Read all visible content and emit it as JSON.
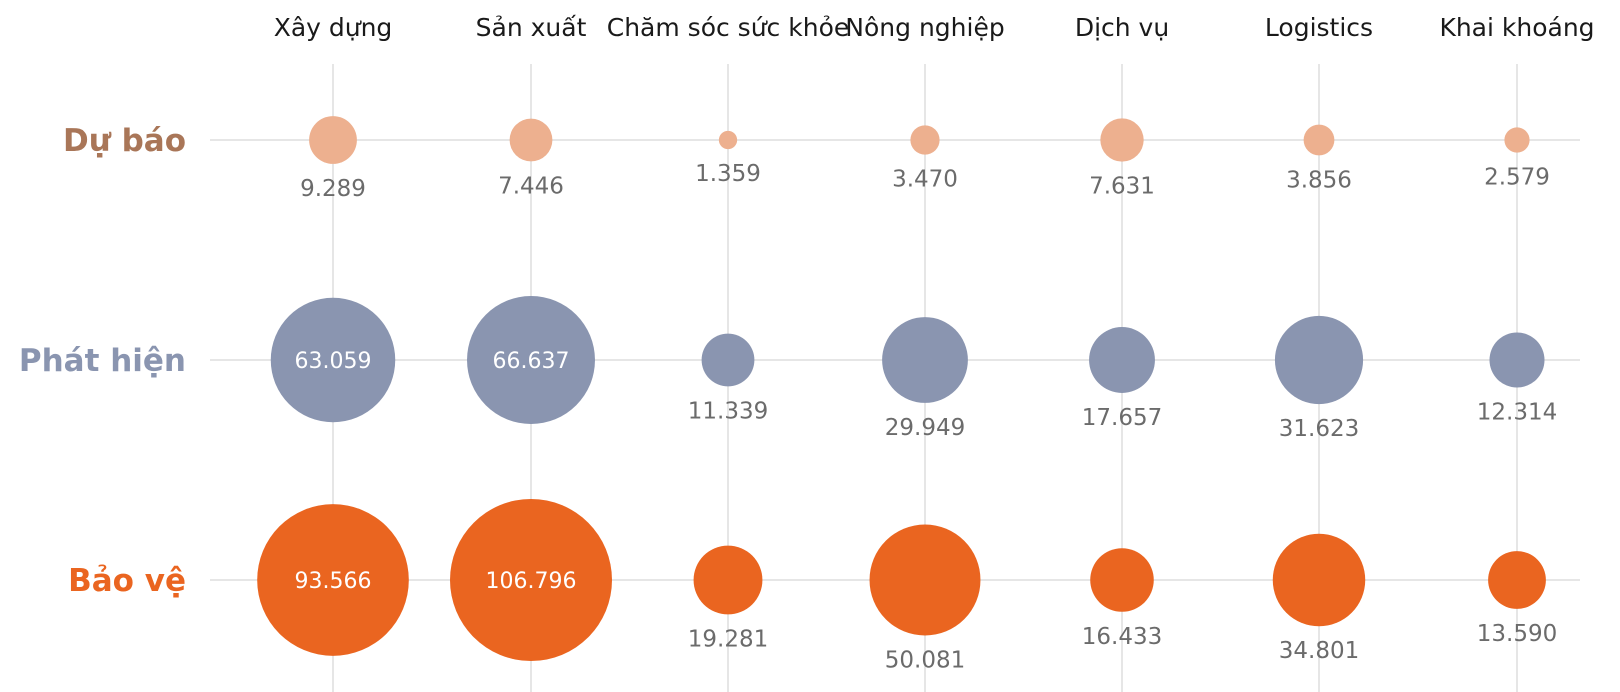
{
  "chart_data": {
    "type": "bubble-matrix",
    "categories": [
      "Xây dựng",
      "Sản xuất",
      "Chăm sóc sức khỏe",
      "Nông nghiệp",
      "Dịch vụ",
      "Logistics",
      "Khai khoáng"
    ],
    "series": [
      {
        "name": "Dự báo",
        "color": "#EDB08F",
        "label_color": "#A97658",
        "values": [
          9289,
          7446,
          1359,
          3470,
          7631,
          3856,
          2579
        ],
        "labels": [
          "9.289",
          "7.446",
          "1.359",
          "3.470",
          "7.631",
          "3.856",
          "2.579"
        ]
      },
      {
        "name": "Phát hiện",
        "color": "#8A95B0",
        "label_color": "#8A95B0",
        "values": [
          63059,
          66637,
          11339,
          29949,
          17657,
          31623,
          12314
        ],
        "labels": [
          "63.059",
          "66.637",
          "11.339",
          "29.949",
          "17.657",
          "31.623",
          "12.314"
        ]
      },
      {
        "name": "Bảo vệ",
        "color": "#EA6520",
        "label_color": "#EA6520",
        "values": [
          93566,
          106796,
          19281,
          50081,
          16433,
          34801,
          13590
        ],
        "labels": [
          "93.566",
          "106.796",
          "19.281",
          "50.081",
          "16.433",
          "34.801",
          "13.590"
        ]
      }
    ],
    "size_encoding": "area",
    "inside_label_threshold": 60000,
    "gridlines": true,
    "legend": "none"
  }
}
